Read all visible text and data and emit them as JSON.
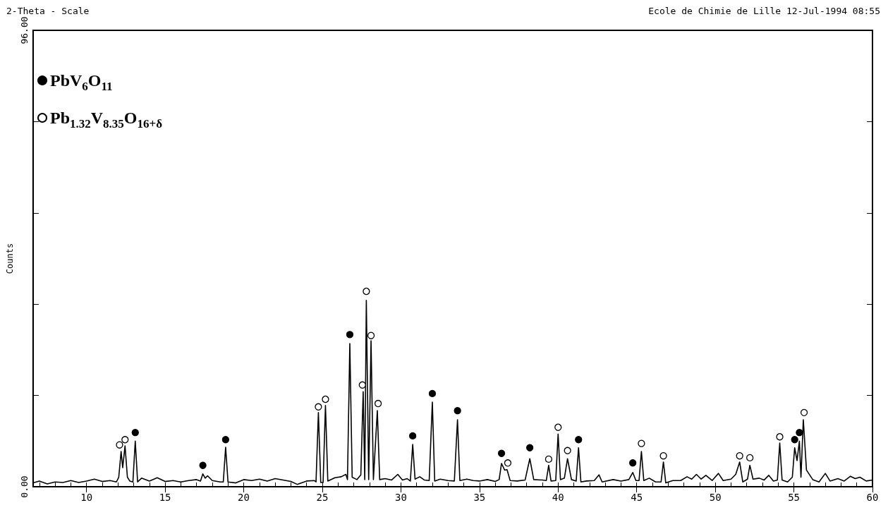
{
  "chart_data": {
    "type": "line",
    "title": "2-Theta - Scale",
    "ylabel": "Counts",
    "annotations": [
      "Ecole de Chimie de Lille 12-Jul-1994 08:55"
    ],
    "xlim": [
      6.6,
      60
    ],
    "ylim": [
      0,
      96
    ],
    "xticks": [
      {
        "value": 7,
        "label": null
      },
      {
        "value": 8,
        "label": null
      },
      {
        "value": 9,
        "label": null
      },
      10,
      {
        "value": 11,
        "label": null
      },
      {
        "value": 12,
        "label": null
      },
      {
        "value": 13,
        "label": null
      },
      {
        "value": 14,
        "label": null
      },
      15,
      {
        "value": 16,
        "label": null
      },
      {
        "value": 17,
        "label": null
      },
      {
        "value": 18,
        "label": null
      },
      {
        "value": 19,
        "label": null
      },
      20,
      {
        "value": 21,
        "label": null
      },
      {
        "value": 22,
        "label": null
      },
      {
        "value": 23,
        "label": null
      },
      {
        "value": 24,
        "label": null
      },
      25,
      {
        "value": 26,
        "label": null
      },
      {
        "value": 27,
        "label": null
      },
      {
        "value": 28,
        "label": null
      },
      {
        "value": 29,
        "label": null
      },
      30,
      {
        "value": 31,
        "label": null
      },
      {
        "value": 32,
        "label": null
      },
      {
        "value": 33,
        "label": null
      },
      {
        "value": 34,
        "label": null
      },
      35,
      {
        "value": 36,
        "label": null
      },
      {
        "value": 37,
        "label": null
      },
      {
        "value": 38,
        "label": null
      },
      {
        "value": 39,
        "label": null
      },
      40,
      {
        "value": 41,
        "label": null
      },
      {
        "value": 42,
        "label": null
      },
      {
        "value": 43,
        "label": null
      },
      {
        "value": 44,
        "label": null
      },
      45,
      {
        "value": 46,
        "label": null
      },
      {
        "value": 47,
        "label": null
      },
      {
        "value": 48,
        "label": null
      },
      {
        "value": 49,
        "label": null
      },
      50,
      {
        "value": 51,
        "label": null
      },
      {
        "value": 52,
        "label": null
      },
      {
        "value": 53,
        "label": null
      },
      {
        "value": 54,
        "label": null
      },
      55,
      {
        "value": 56,
        "label": null
      },
      {
        "value": 57,
        "label": null
      },
      {
        "value": 58,
        "label": null
      },
      {
        "value": 59,
        "label": null
      },
      60
    ],
    "yticks": [
      {
        "value": 0,
        "label": "0.00"
      },
      {
        "value": 19.2,
        "label": null
      },
      {
        "value": 38.4,
        "label": null
      },
      {
        "value": 57.6,
        "label": null
      },
      {
        "value": 76.8,
        "label": null
      },
      {
        "value": 96,
        "label": "96.00"
      }
    ],
    "grid": false,
    "legend": "top left",
    "series": [
      {
        "color": "#000000",
        "marker": "none",
        "line_style": "solid",
        "x": [
          6.6,
          7.0,
          7.5,
          8.0,
          8.5,
          9.0,
          9.5,
          10.0,
          10.5,
          11.0,
          11.5,
          11.9,
          12.05,
          12.2,
          12.3,
          12.45,
          12.6,
          12.75,
          12.95,
          13.1,
          13.25,
          13.5,
          14.0,
          14.5,
          15.0,
          15.5,
          16.0,
          16.5,
          17.0,
          17.25,
          17.4,
          17.55,
          17.7,
          18.0,
          18.5,
          18.7,
          18.85,
          19.0,
          19.5,
          20.0,
          20.5,
          21.0,
          21.5,
          22.0,
          22.5,
          23.0,
          23.4,
          24.0,
          24.5,
          24.6,
          24.75,
          24.9,
          25.05,
          25.2,
          25.35,
          25.8,
          26.2,
          26.5,
          26.6,
          26.75,
          26.9,
          27.2,
          27.45,
          27.6,
          27.7,
          27.8,
          27.95,
          28.1,
          28.25,
          28.5,
          28.65,
          29.0,
          29.4,
          29.8,
          30.1,
          30.4,
          30.6,
          30.75,
          30.9,
          31.2,
          31.5,
          31.8,
          32.0,
          32.15,
          32.5,
          33.0,
          33.4,
          33.6,
          33.75,
          34.2,
          34.6,
          35.0,
          35.5,
          36.0,
          36.25,
          36.4,
          36.6,
          36.75,
          36.95,
          37.4,
          37.9,
          38.2,
          38.45,
          39.0,
          39.25,
          39.4,
          39.55,
          39.85,
          40.0,
          40.15,
          40.4,
          40.6,
          40.85,
          41.15,
          41.3,
          41.45,
          41.8,
          42.3,
          42.6,
          42.8,
          43.5,
          44.0,
          44.5,
          44.75,
          44.95,
          45.15,
          45.3,
          45.45,
          45.8,
          46.2,
          46.55,
          46.7,
          46.85,
          47.3,
          47.8,
          48.2,
          48.5,
          48.8,
          49.1,
          49.4,
          49.8,
          50.2,
          50.5,
          51.0,
          51.3,
          51.55,
          51.75,
          52.05,
          52.2,
          52.4,
          52.8,
          53.1,
          53.4,
          53.7,
          53.95,
          54.1,
          54.25,
          54.6,
          54.9,
          55.05,
          55.2,
          55.35,
          55.45,
          55.6,
          55.8,
          56.2,
          56.6,
          57.0,
          57.3,
          57.8,
          58.2,
          58.6,
          58.9,
          59.2,
          59.6,
          60.0
        ],
        "values": [
          0.8,
          1.2,
          0.6,
          1.0,
          0.9,
          1.3,
          0.9,
          1.2,
          1.6,
          1.1,
          1.3,
          1.0,
          2.0,
          7.4,
          4.0,
          8.6,
          2.0,
          1.2,
          1.0,
          9.6,
          1.0,
          1.8,
          1.2,
          1.9,
          1.1,
          1.3,
          1.0,
          1.3,
          1.5,
          1.2,
          2.7,
          1.8,
          2.3,
          1.3,
          1.0,
          1.0,
          8.3,
          1.0,
          0.8,
          1.5,
          1.3,
          1.6,
          1.2,
          1.7,
          1.4,
          1.1,
          0.5,
          1.2,
          1.3,
          1.0,
          15.6,
          0.9,
          0.9,
          17.1,
          1.2,
          1.9,
          2.1,
          2.6,
          1.5,
          30.1,
          2.0,
          1.5,
          2.5,
          20.0,
          1.5,
          39.2,
          1.5,
          30.7,
          1.5,
          16.0,
          1.5,
          1.7,
          1.4,
          2.6,
          1.4,
          1.7,
          1.2,
          8.9,
          1.6,
          2.1,
          1.4,
          1.3,
          17.8,
          1.2,
          1.6,
          1.3,
          1.2,
          14.1,
          1.3,
          1.6,
          1.3,
          1.2,
          1.5,
          1.1,
          1.5,
          4.9,
          3.5,
          3.6,
          1.3,
          1.2,
          1.4,
          5.9,
          1.5,
          1.4,
          1.3,
          4.5,
          1.2,
          1.3,
          11.1,
          1.5,
          1.8,
          5.9,
          1.5,
          1.2,
          8.2,
          1.0,
          1.2,
          1.3,
          2.5,
          1.0,
          1.5,
          1.2,
          1.5,
          3.0,
          1.3,
          1.3,
          7.4,
          1.3,
          1.8,
          1.0,
          1.0,
          5.2,
          0.8,
          1.3,
          1.3,
          2.1,
          1.6,
          2.6,
          1.6,
          2.4,
          1.3,
          2.8,
          1.3,
          1.6,
          2.6,
          5.2,
          1.0,
          1.6,
          4.5,
          1.6,
          1.8,
          1.4,
          2.4,
          1.2,
          1.4,
          9.2,
          1.4,
          1.0,
          2.0,
          8.2,
          5.5,
          9.6,
          2.0,
          14.1,
          3.5,
          1.5,
          1.0,
          2.8,
          1.2,
          1.7,
          1.2,
          2.2,
          1.7,
          2.0,
          1.2,
          1.4
        ]
      },
      {
        "type": "scatter",
        "name": "PbV$_{6}$O$_{11}$",
        "color": "#000000",
        "marker": "circle",
        "x": [
          13.1,
          17.4,
          18.85,
          26.75,
          30.75,
          32.0,
          33.6,
          36.4,
          38.2,
          41.3,
          44.75,
          55.05,
          55.35
        ],
        "values": [
          11.4,
          4.5,
          9.9,
          32.0,
          10.7,
          19.6,
          16.0,
          7.0,
          8.2,
          9.9,
          5.0,
          9.9,
          11.4
        ]
      },
      {
        "type": "scatter",
        "name": "Pb$_{1.32}$V$_{8.35}$O$_{16+δ}$",
        "color": "#ffffff",
        "marker": "circle",
        "x": [
          12.1,
          12.45,
          24.75,
          25.2,
          27.55,
          27.8,
          28.1,
          28.55,
          36.8,
          39.4,
          40.0,
          40.6,
          45.3,
          46.7,
          51.55,
          52.2,
          54.1,
          55.65
        ],
        "values": [
          8.8,
          9.9,
          16.8,
          18.4,
          21.4,
          41.1,
          31.8,
          17.5,
          5.0,
          5.8,
          12.5,
          7.6,
          9.1,
          6.5,
          6.5,
          6.1,
          10.5,
          15.6
        ]
      }
    ]
  }
}
